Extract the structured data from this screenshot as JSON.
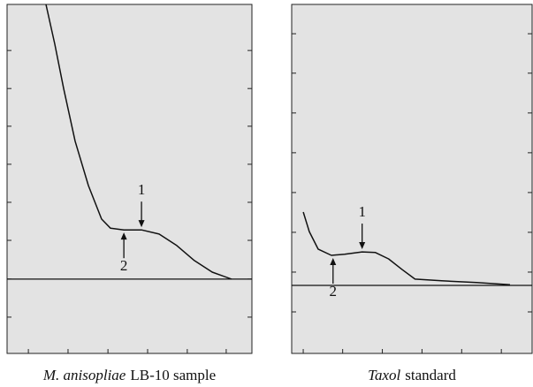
{
  "chart_data": [
    {
      "type": "line",
      "title": [
        "M. anisopliae",
        "LB-10 sample"
      ],
      "x": [
        15.9,
        19.5,
        23.1,
        27.8,
        33.2,
        38.6,
        42.2,
        47.7,
        54.9,
        62.1,
        69.3,
        76.5,
        83.8,
        91.7
      ],
      "values": [
        100,
        88.6,
        75.9,
        60.8,
        48.1,
        38.5,
        35.9,
        35.4,
        35.4,
        34.2,
        30.9,
        26.6,
        23.3,
        21.3
      ],
      "baseline": 21.3,
      "color": "#111111",
      "background": "#e3e3e3",
      "xlim": [
        0,
        100
      ],
      "ylim": [
        0,
        100
      ],
      "xticks": [
        8.7,
        24.9,
        41.2,
        57.4,
        73.6,
        89.5
      ],
      "yticks": [
        10.4,
        21.3,
        32.4,
        43.3,
        54.2,
        65.1,
        75.9,
        86.8
      ],
      "annotations": [
        {
          "text": "1",
          "x": 54.9,
          "y": 35.4,
          "side": "above"
        },
        {
          "text": "2",
          "x": 47.7,
          "y": 35.4,
          "side": "below"
        }
      ]
    },
    {
      "type": "line",
      "title": [
        "Taxol",
        "standard"
      ],
      "x": [
        4.8,
        7.3,
        11.0,
        16.5,
        22.0,
        29.3,
        34.8,
        40.3,
        45.8,
        51.3,
        62.3,
        76.9,
        90.8
      ],
      "values": [
        40.5,
        34.9,
        29.9,
        28.1,
        28.4,
        29.1,
        28.9,
        27.1,
        24.1,
        21.3,
        20.8,
        20.3,
        19.7
      ],
      "baseline": 19.5,
      "color": "#111111",
      "background": "#e3e3e3",
      "xlim": [
        0,
        100
      ],
      "ylim": [
        0,
        100
      ],
      "xticks": [
        4.8,
        21.2,
        37.7,
        54.2,
        70.7,
        87.2
      ],
      "yticks": [
        11.9,
        23.3,
        34.7,
        46.1,
        57.5,
        68.9,
        80.3,
        91.6
      ],
      "annotations": [
        {
          "text": "1",
          "x": 29.3,
          "y": 29.1,
          "side": "above"
        },
        {
          "text": "2",
          "x": 17.2,
          "y": 28.1,
          "side": "below"
        }
      ]
    }
  ]
}
